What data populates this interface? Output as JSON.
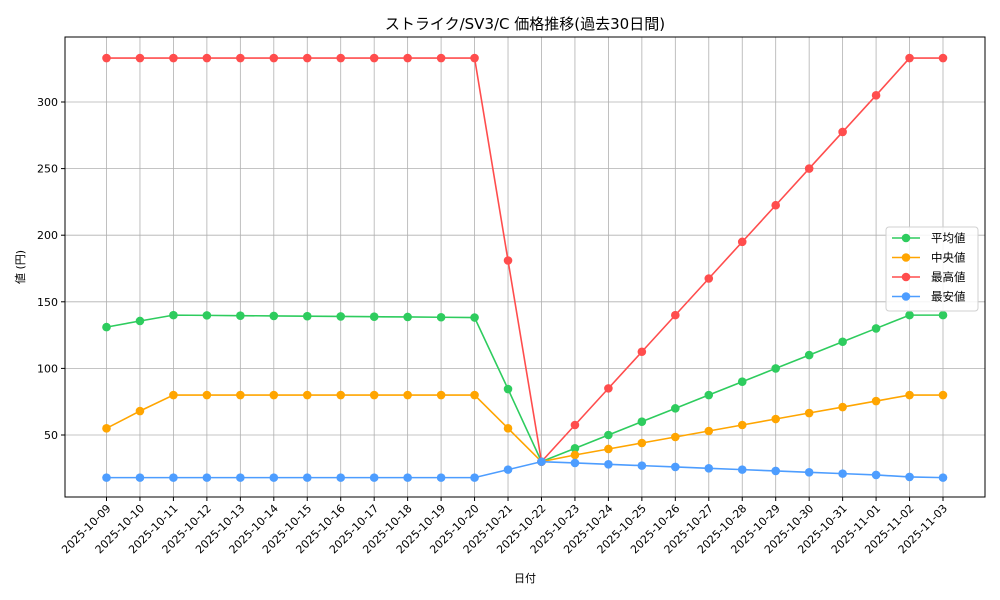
{
  "chart_data": {
    "type": "line",
    "title": "ストライク/SV3/C 価格推移(過去30日間)",
    "xlabel": "日付",
    "ylabel": "値 (円)",
    "ylim": [
      7,
      348
    ],
    "yticks": [
      50,
      100,
      150,
      200,
      250,
      300
    ],
    "grid": true,
    "legend_position": "center right",
    "categories": [
      "2025-10-09",
      "2025-10-10",
      "2025-10-11",
      "2025-10-12",
      "2025-10-13",
      "2025-10-14",
      "2025-10-15",
      "2025-10-16",
      "2025-10-17",
      "2025-10-18",
      "2025-10-19",
      "2025-10-20",
      "2025-10-21",
      "2025-10-22",
      "2025-10-23",
      "2025-10-24",
      "2025-10-25",
      "2025-10-26",
      "2025-10-27",
      "2025-10-28",
      "2025-10-29",
      "2025-10-30",
      "2025-10-31",
      "2025-11-01",
      "2025-11-02",
      "2025-11-03"
    ],
    "series": [
      {
        "name": "平均値",
        "color": "#2ecc5e",
        "values": [
          131,
          135.6,
          140,
          139.8,
          139.6,
          139.4,
          139.2,
          139,
          138.8,
          138.6,
          138.4,
          138.2,
          84.5,
          30,
          40,
          50,
          60,
          70,
          80,
          90,
          100,
          110,
          120,
          130,
          140,
          140
        ]
      },
      {
        "name": "中央値",
        "color": "#ffa500",
        "values": [
          55,
          68,
          80,
          80,
          80,
          80,
          80,
          80,
          80,
          80,
          80,
          80,
          55,
          30,
          35,
          39.5,
          44,
          48.5,
          53,
          57.5,
          62,
          66.5,
          71,
          75.5,
          80,
          80
        ]
      },
      {
        "name": "最高値",
        "color": "#ff4d4d",
        "values": [
          333,
          333,
          333,
          333,
          333,
          333,
          333,
          333,
          333,
          333,
          333,
          333,
          181,
          30,
          57.5,
          85,
          112.5,
          140,
          167.5,
          195,
          222.5,
          250,
          277.5,
          305,
          333,
          333
        ]
      },
      {
        "name": "最安値",
        "color": "#4d9dff",
        "values": [
          18,
          18,
          18,
          18,
          18,
          18,
          18,
          18,
          18,
          18,
          18,
          18,
          24,
          30,
          29,
          28,
          27,
          26,
          25,
          24,
          23,
          22,
          21,
          20,
          18.5,
          18
        ]
      }
    ]
  }
}
